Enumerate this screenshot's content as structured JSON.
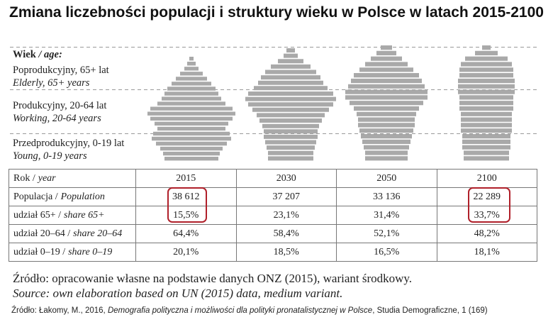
{
  "title": "Zmiana liczebności populacji i struktury wieku w Polsce w latach 2015-2100",
  "legend": {
    "header": "Wiek",
    "header_en": "/ age:",
    "groups": [
      {
        "pl": "Poprodukcyjny, 65+ lat",
        "en": "Elderly, 65+ years"
      },
      {
        "pl": "Produkcyjny, 20-64 lat",
        "en": "Working, 20-64 years"
      },
      {
        "pl": "Przedprodukcyjny, 0-19 lat",
        "en": "Young, 0-19 years"
      }
    ]
  },
  "table": {
    "header": {
      "pl": "Rok /",
      "en": "year",
      "years": [
        "2015",
        "2030",
        "2050",
        "2100"
      ]
    },
    "rows": [
      {
        "pl": "Populacja /",
        "en": "Population",
        "values": [
          "38 612",
          "37 207",
          "33 136",
          "22 289"
        ]
      },
      {
        "pl": "udział 65+ /",
        "en": "share 65+",
        "values": [
          "15,5%",
          "23,1%",
          "31,4%",
          "33,7%"
        ]
      },
      {
        "pl": "udział 20–64 /",
        "en": "share 20–64",
        "values": [
          "64,4%",
          "58,4%",
          "52,1%",
          "48,2%"
        ]
      },
      {
        "pl": "udział 0–19 /",
        "en": "share 0–19",
        "values": [
          "20,1%",
          "18,5%",
          "16,5%",
          "18,1%"
        ]
      }
    ]
  },
  "source_pl": "Źródło: opracowanie własne na podstawie danych ONZ (2015), wariant środkowy.",
  "source_en": "Source: own elaboration based on UN (2015) data, medium variant.",
  "citation": {
    "before": "Źródło: Łakomy, M., 2016,",
    "title": "Demografia polityczna i możliwości dla polityki pronatalistycznej w Polsce",
    "after": ", Studia Demograficzne, 1 (169)"
  }
}
